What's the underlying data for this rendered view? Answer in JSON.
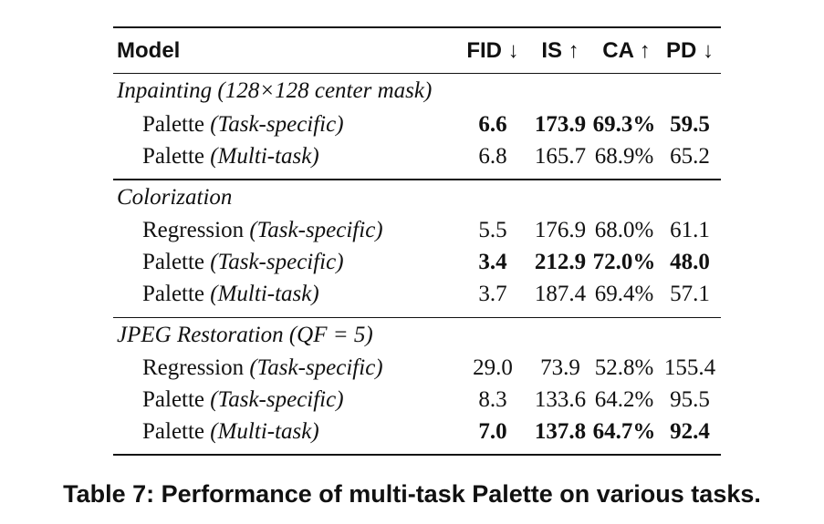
{
  "table": {
    "header": {
      "model": "Model",
      "fid": "FID ↓",
      "is": "IS ↑",
      "ca": "CA ↑",
      "pd": "PD ↓"
    },
    "sections": [
      {
        "title": "Inpainting (128×128 center mask)",
        "rows": [
          {
            "name": "Palette",
            "variant": "(Task-specific)",
            "fid": "6.6",
            "is": "173.9",
            "ca": "69.3%",
            "pd": "59.5"
          },
          {
            "name": "Palette",
            "variant": "(Multi-task)",
            "fid": "6.8",
            "is": "165.7",
            "ca": "68.9%",
            "pd": "65.2"
          }
        ]
      },
      {
        "title": "Colorization",
        "rows": [
          {
            "name": "Regression",
            "variant": "(Task-specific)",
            "fid": "5.5",
            "is": "176.9",
            "ca": "68.0%",
            "pd": "61.1"
          },
          {
            "name": "Palette",
            "variant": "(Task-specific)",
            "fid": "3.4",
            "is": "212.9",
            "ca": "72.0%",
            "pd": "48.0"
          },
          {
            "name": "Palette",
            "variant": "(Multi-task)",
            "fid": "3.7",
            "is": "187.4",
            "ca": "69.4%",
            "pd": "57.1"
          }
        ]
      },
      {
        "title": "JPEG Restoration (QF = 5)",
        "rows": [
          {
            "name": "Regression",
            "variant": "(Task-specific)",
            "fid": "29.0",
            "is": "73.9",
            "ca": "52.8%",
            "pd": "155.4"
          },
          {
            "name": "Palette",
            "variant": "(Task-specific)",
            "fid": "8.3",
            "is": "133.6",
            "ca": "64.2%",
            "pd": "95.5"
          },
          {
            "name": "Palette",
            "variant": "(Multi-task)",
            "fid": "7.0",
            "is": "137.8",
            "ca": "64.7%",
            "pd": "92.4"
          }
        ]
      }
    ]
  },
  "caption": "Table 7: Performance of multi-task Palette on various tasks."
}
